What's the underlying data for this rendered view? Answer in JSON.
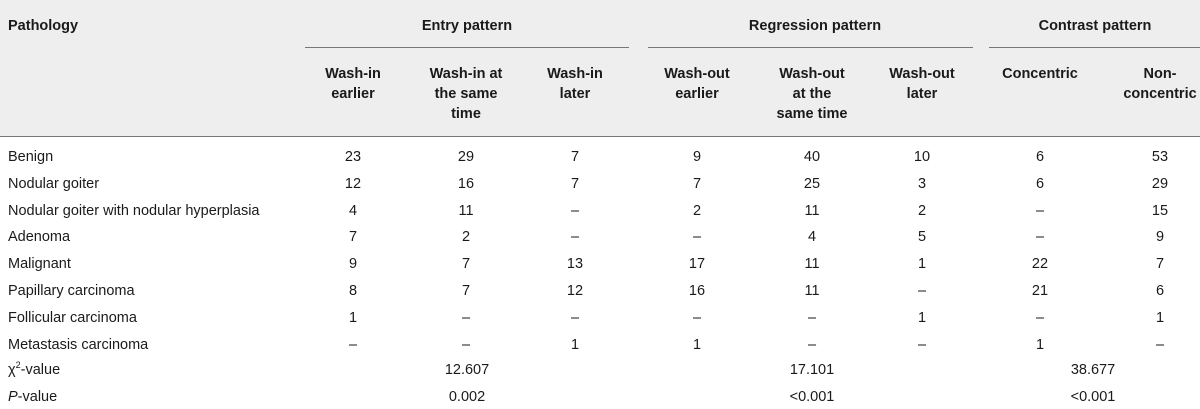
{
  "header": {
    "pathology": "Pathology",
    "groups": [
      "Entry pattern",
      "Regression pattern",
      "Contrast pattern"
    ],
    "columns": [
      [
        "Wash-in",
        "earlier"
      ],
      [
        "Wash-in at",
        "the same",
        "time"
      ],
      [
        "Wash-in",
        "later"
      ],
      [
        "Wash-out",
        "earlier"
      ],
      [
        "Wash-out",
        "at the",
        "same time"
      ],
      [
        "Wash-out",
        "later"
      ],
      [
        "Concentric"
      ],
      [
        "Non-",
        "concentric"
      ]
    ]
  },
  "rows": [
    {
      "label": "Benign",
      "values": [
        "23",
        "29",
        "7",
        "9",
        "40",
        "10",
        "6",
        "53"
      ]
    },
    {
      "label": "Nodular goiter",
      "values": [
        "12",
        "16",
        "7",
        "7",
        "25",
        "3",
        "6",
        "29"
      ]
    },
    {
      "label": "Nodular goiter with nodular hyperplasia",
      "values": [
        "4",
        "11",
        "–",
        "2",
        "11",
        "2",
        "–",
        "15"
      ]
    },
    {
      "label": "Adenoma",
      "values": [
        "7",
        "2",
        "–",
        "–",
        "4",
        "5",
        "–",
        "9"
      ]
    },
    {
      "label": "Malignant",
      "values": [
        "9",
        "7",
        "13",
        "17",
        "11",
        "1",
        "22",
        "7"
      ]
    },
    {
      "label": "Papillary carcinoma",
      "values": [
        "8",
        "7",
        "12",
        "16",
        "11",
        "–",
        "21",
        "6"
      ]
    },
    {
      "label": "Follicular carcinoma",
      "values": [
        "1",
        "–",
        "–",
        "–",
        "–",
        "1",
        "–",
        "1"
      ]
    },
    {
      "label": "Metastasis carcinoma",
      "values": [
        "–",
        "–",
        "1",
        "1",
        "–",
        "–",
        "1",
        "–"
      ]
    }
  ],
  "chi": {
    "label_pre": "χ",
    "label_sup": "2",
    "label_post": "-value",
    "values": [
      "12.607",
      "17.101",
      "38.677"
    ]
  },
  "pvalue": {
    "label_italic": "P",
    "label_post": "-value",
    "values": [
      "0.002",
      "<0.001",
      "<0.001"
    ]
  }
}
